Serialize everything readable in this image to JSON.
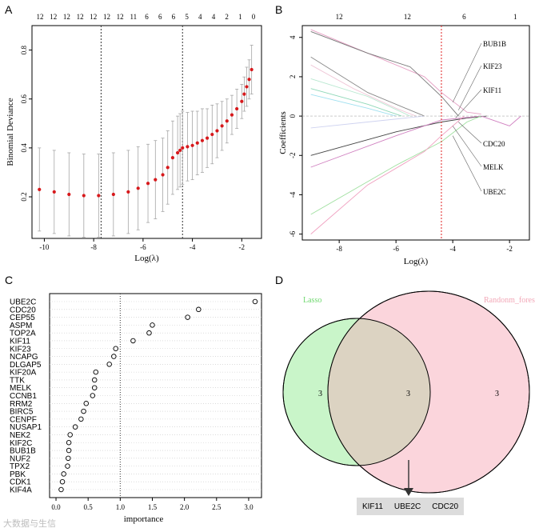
{
  "panels": {
    "a": {
      "letter": "A"
    },
    "b": {
      "letter": "B"
    },
    "c": {
      "letter": "C"
    },
    "d": {
      "letter": "D"
    }
  },
  "colors": {
    "deviance_point": "#d7191c",
    "error_bar": "#a6a6a6",
    "cv_line": "#d7191c",
    "venn_left": "#c9f5c9",
    "venn_right": "#fbd5dc",
    "venn_overlap": "#dcd3c2",
    "gene_box": "#dcdcdc"
  },
  "chart_data": [
    {
      "panel": "A",
      "type": "scatter",
      "xlabel": "Log(λ)",
      "ylabel": "Binomial Deviance",
      "xlim": [
        -10.5,
        -1.2
      ],
      "ylim": [
        0.03,
        0.9
      ],
      "xticks": [
        -10,
        -8,
        -6,
        -4,
        -2
      ],
      "yticks": [
        0.2,
        0.4,
        0.6,
        0.8
      ],
      "top_ticks": [
        "12",
        "12",
        "12",
        "12",
        "12",
        "12",
        "12",
        "11",
        "6",
        "6",
        "6",
        "5",
        "4",
        "4",
        "2",
        "1",
        "0"
      ],
      "vlines": [
        -7.7,
        -4.4
      ],
      "series": [
        {
          "x": [
            -10.2,
            -9.6,
            -9.0,
            -8.4,
            -7.8,
            -7.2,
            -6.6,
            -6.2,
            -5.8,
            -5.5,
            -5.2,
            -5.0,
            -4.8,
            -4.6,
            -4.5,
            -4.4,
            -4.2,
            -4.0,
            -3.8,
            -3.6,
            -3.4,
            -3.2,
            -3.0,
            -2.8,
            -2.6,
            -2.4,
            -2.2,
            -2.0,
            -1.9,
            -1.8,
            -1.7,
            -1.6
          ],
          "y": [
            0.23,
            0.22,
            0.21,
            0.205,
            0.205,
            0.21,
            0.22,
            0.235,
            0.255,
            0.27,
            0.29,
            0.32,
            0.36,
            0.38,
            0.39,
            0.4,
            0.405,
            0.41,
            0.42,
            0.43,
            0.44,
            0.455,
            0.47,
            0.49,
            0.51,
            0.535,
            0.56,
            0.59,
            0.62,
            0.65,
            0.68,
            0.72
          ],
          "err": [
            0.17,
            0.17,
            0.17,
            0.17,
            0.17,
            0.17,
            0.17,
            0.17,
            0.16,
            0.16,
            0.15,
            0.15,
            0.15,
            0.15,
            0.15,
            0.15,
            0.14,
            0.14,
            0.13,
            0.13,
            0.12,
            0.12,
            0.11,
            0.1,
            0.09,
            0.08,
            0.08,
            0.07,
            0.07,
            0.08,
            0.08,
            0.1
          ]
        }
      ]
    },
    {
      "panel": "B",
      "type": "line",
      "xlabel": "Log(λ)",
      "ylabel": "Coefficients",
      "xlim": [
        -9.3,
        -1.3
      ],
      "ylim": [
        -6.3,
        4.6
      ],
      "xticks": [
        -8,
        -6,
        -4,
        -2
      ],
      "yticks": [
        -6,
        -4,
        -2,
        0,
        2,
        4
      ],
      "top_ticks": [
        "12",
        "12",
        "6",
        "1"
      ],
      "vline": -4.4,
      "gene_labels": [
        "BUB1B",
        "KIF23",
        "KIF11",
        "CDC20",
        "MELK",
        "UBE2C"
      ],
      "series": [
        {
          "color": "#e6a0c4",
          "points": [
            [
              -9.0,
              4.4
            ],
            [
              -7.0,
              3.2
            ],
            [
              -5.0,
              2.0
            ],
            [
              -4.4,
              1.2
            ],
            [
              -3.5,
              0.2
            ],
            [
              -3.0,
              0.1
            ]
          ]
        },
        {
          "color": "#777777",
          "points": [
            [
              -9.0,
              4.3
            ],
            [
              -7.0,
              3.2
            ],
            [
              -5.5,
              2.5
            ],
            [
              -4.4,
              1.0
            ],
            [
              -3.8,
              0.0
            ]
          ]
        },
        {
          "color": "#888888",
          "points": [
            [
              -9.0,
              3.0
            ],
            [
              -7.0,
              1.2
            ],
            [
              -5.5,
              0.3
            ],
            [
              -5.0,
              0.0
            ]
          ]
        },
        {
          "color": "#f0c8d8",
          "points": [
            [
              -9.0,
              2.6
            ],
            [
              -7.5,
              1.4
            ],
            [
              -6.0,
              0.4
            ],
            [
              -5.3,
              0.0
            ]
          ]
        },
        {
          "color": "#b8e8d0",
          "points": [
            [
              -9.0,
              1.9
            ],
            [
              -7.0,
              1.0
            ],
            [
              -5.5,
              0.0
            ]
          ]
        },
        {
          "color": "#8fd8b8",
          "points": [
            [
              -9.0,
              1.4
            ],
            [
              -7.0,
              0.6
            ],
            [
              -5.8,
              0.0
            ]
          ]
        },
        {
          "color": "#9fe0f0",
          "points": [
            [
              -9.0,
              1.1
            ],
            [
              -7.0,
              0.4
            ],
            [
              -6.0,
              0.0
            ]
          ]
        },
        {
          "color": "#cfd3f0",
          "points": [
            [
              -9.0,
              -0.6
            ],
            [
              -7.0,
              -0.3
            ],
            [
              -5.0,
              0.0
            ]
          ]
        },
        {
          "color": "#444444",
          "points": [
            [
              -9.0,
              -2.0
            ],
            [
              -6.0,
              -0.8
            ],
            [
              -4.4,
              -0.3
            ],
            [
              -3.5,
              -0.1
            ],
            [
              -2.8,
              0.0
            ]
          ]
        },
        {
          "color": "#d080c0",
          "points": [
            [
              -9.0,
              -2.6
            ],
            [
              -6.0,
              -1.0
            ],
            [
              -4.4,
              -0.2
            ],
            [
              -3.0,
              0.0
            ],
            [
              -2.0,
              -0.5
            ],
            [
              -1.6,
              0.0
            ]
          ]
        },
        {
          "color": "#a0e0a0",
          "points": [
            [
              -9.0,
              -5.0
            ],
            [
              -6.0,
              -2.5
            ],
            [
              -4.4,
              -1.3
            ],
            [
              -3.5,
              -0.3
            ],
            [
              -3.0,
              0.0
            ]
          ]
        },
        {
          "color": "#f0a0c0",
          "points": [
            [
              -9.0,
              -6.0
            ],
            [
              -7.0,
              -3.5
            ],
            [
              -5.0,
              -1.8
            ],
            [
              -4.4,
              -1.0
            ],
            [
              -3.6,
              0.0
            ]
          ]
        }
      ]
    },
    {
      "panel": "C",
      "type": "scatter",
      "xlabel": "importance",
      "xlim": [
        -0.1,
        3.2
      ],
      "xticks": [
        0.0,
        0.5,
        1.0,
        1.5,
        2.0,
        2.5,
        3.0
      ],
      "vline": 1.0,
      "categories": [
        "UBE2C",
        "CDC20",
        "CEP55",
        "ASPM",
        "TOP2A",
        "KIF11",
        "KIF23",
        "NCAPG",
        "DLGAP5",
        "KIF20A",
        "TTK",
        "MELK",
        "CCNB1",
        "RRM2",
        "BIRC5",
        "CENPF",
        "NUSAP1",
        "NEK2",
        "KIF2C",
        "BUB1B",
        "NUF2",
        "TPX2",
        "PBK",
        "CDK1",
        "KIF4A"
      ],
      "values": [
        3.1,
        2.22,
        2.05,
        1.5,
        1.45,
        1.2,
        0.93,
        0.9,
        0.83,
        0.62,
        0.6,
        0.6,
        0.57,
        0.47,
        0.43,
        0.39,
        0.3,
        0.22,
        0.2,
        0.2,
        0.19,
        0.18,
        0.12,
        0.1,
        0.08
      ]
    }
  ],
  "venn": {
    "left_label": "Lasso",
    "right_label": "Randonm_forest",
    "left_only": "3",
    "overlap": "3",
    "right_only": "3",
    "shared_genes": [
      "KIF11",
      "UBE2C",
      "CDC20"
    ]
  },
  "watermark": "大数据与生信"
}
